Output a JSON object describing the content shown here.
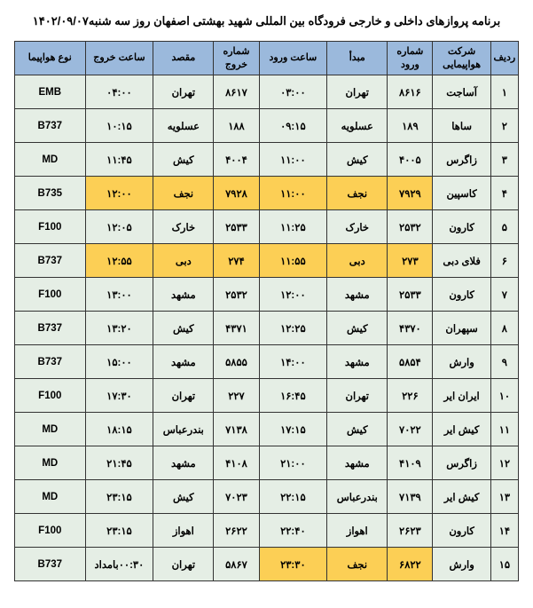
{
  "title": "برنامه پروازهای داخلی و خارجی فرودگاه بین المللی شهید بهشتی اصفهان روز سه شنبه۱۴۰۲/۰۹/۰۷",
  "headers": {
    "idx": "ردیف",
    "airline": "شرکت هواپیمایی",
    "flightNoArr": "شماره ورود",
    "origin": "مبدأ",
    "arrTime": "ساعت ورود",
    "flightNoDep": "شماره خروج",
    "dest": "مقصد",
    "depTime": "ساعت خروج",
    "acType": "نوع هواپیما"
  },
  "colors": {
    "headerBg": "#9bb9dc",
    "cellBg": "#e5eee5",
    "highlightBg": "#fccf55",
    "border": "#333333",
    "text": "#000000"
  },
  "rows": [
    {
      "idx": "۱",
      "airline": "آساجت",
      "fnA": "۸۶۱۶",
      "org": "تهران",
      "at": "۰۳:۰۰",
      "fnD": "۸۶۱۷",
      "dst": "تهران",
      "dt": "۰۴:۰۰",
      "type": "EMB",
      "hl": []
    },
    {
      "idx": "۲",
      "airline": "ساها",
      "fnA": "۱۸۹",
      "org": "عسلویه",
      "at": "۰۹:۱۵",
      "fnD": "۱۸۸",
      "dst": "عسلویه",
      "dt": "۱۰:۱۵",
      "type": "B737",
      "hl": []
    },
    {
      "idx": "۳",
      "airline": "زاگرس",
      "fnA": "۴۰۰۵",
      "org": "کیش",
      "at": "۱۱:۰۰",
      "fnD": "۴۰۰۴",
      "dst": "کیش",
      "dt": "۱۱:۴۵",
      "type": "MD",
      "hl": []
    },
    {
      "idx": "۴",
      "airline": "کاسپین",
      "fnA": "۷۹۲۹",
      "org": "نجف",
      "at": "۱۱:۰۰",
      "fnD": "۷۹۲۸",
      "dst": "نجف",
      "dt": "۱۲:۰۰",
      "type": "B735",
      "hl": [
        "fnA",
        "org",
        "at",
        "fnD",
        "dst",
        "dt"
      ]
    },
    {
      "idx": "۵",
      "airline": "کارون",
      "fnA": "۲۵۳۲",
      "org": "خارک",
      "at": "۱۱:۲۵",
      "fnD": "۲۵۳۳",
      "dst": "خارک",
      "dt": "۱۲:۰۵",
      "type": "F100",
      "hl": []
    },
    {
      "idx": "۶",
      "airline": "فلای دبی",
      "fnA": "۲۷۳",
      "org": "دبی",
      "at": "۱۱:۵۵",
      "fnD": "۲۷۴",
      "dst": "دبی",
      "dt": "۱۲:۵۵",
      "type": "B737",
      "hl": [
        "fnA",
        "org",
        "at",
        "fnD",
        "dst",
        "dt"
      ]
    },
    {
      "idx": "۷",
      "airline": "کارون",
      "fnA": "۲۵۳۳",
      "org": "مشهد",
      "at": "۱۲:۰۰",
      "fnD": "۲۵۳۲",
      "dst": "مشهد",
      "dt": "۱۳:۰۰",
      "type": "F100",
      "hl": []
    },
    {
      "idx": "۸",
      "airline": "سپهران",
      "fnA": "۴۳۷۰",
      "org": "کیش",
      "at": "۱۲:۲۵",
      "fnD": "۴۳۷۱",
      "dst": "کیش",
      "dt": "۱۳:۲۰",
      "type": "B737",
      "hl": []
    },
    {
      "idx": "۹",
      "airline": "وارش",
      "fnA": "۵۸۵۴",
      "org": "مشهد",
      "at": "۱۴:۰۰",
      "fnD": "۵۸۵۵",
      "dst": "مشهد",
      "dt": "۱۵:۰۰",
      "type": "B737",
      "hl": []
    },
    {
      "idx": "۱۰",
      "airline": "ایران ایر",
      "fnA": "۲۲۶",
      "org": "تهران",
      "at": "۱۶:۴۵",
      "fnD": "۲۲۷",
      "dst": "تهران",
      "dt": "۱۷:۳۰",
      "type": "F100",
      "hl": []
    },
    {
      "idx": "۱۱",
      "airline": "کیش ایر",
      "fnA": "۷۰۲۲",
      "org": "کیش",
      "at": "۱۷:۱۵",
      "fnD": "۷۱۳۸",
      "dst": "بندرعباس",
      "dt": "۱۸:۱۵",
      "type": "MD",
      "hl": []
    },
    {
      "idx": "۱۲",
      "airline": "زاگرس",
      "fnA": "۴۱۰۹",
      "org": "مشهد",
      "at": "۲۱:۰۰",
      "fnD": "۴۱۰۸",
      "dst": "مشهد",
      "dt": "۲۱:۴۵",
      "type": "MD",
      "hl": []
    },
    {
      "idx": "۱۳",
      "airline": "کیش ایر",
      "fnA": "۷۱۳۹",
      "org": "بندرعباس",
      "at": "۲۲:۱۵",
      "fnD": "۷۰۲۳",
      "dst": "کیش",
      "dt": "۲۳:۱۵",
      "type": "MD",
      "hl": []
    },
    {
      "idx": "۱۴",
      "airline": "کارون",
      "fnA": "۲۶۲۳",
      "org": "اهواز",
      "at": "۲۲:۴۰",
      "fnD": "۲۶۲۲",
      "dst": "اهواز",
      "dt": "۲۳:۱۵",
      "type": "F100",
      "hl": []
    },
    {
      "idx": "۱۵",
      "airline": "وارش",
      "fnA": "۶۸۲۲",
      "org": "نجف",
      "at": "۲۳:۳۰",
      "fnD": "۵۸۶۷",
      "dst": "تهران",
      "dt": "۰۰:۳۰بامداد",
      "type": "B737",
      "hl": [
        "fnA",
        "org",
        "at"
      ]
    }
  ]
}
